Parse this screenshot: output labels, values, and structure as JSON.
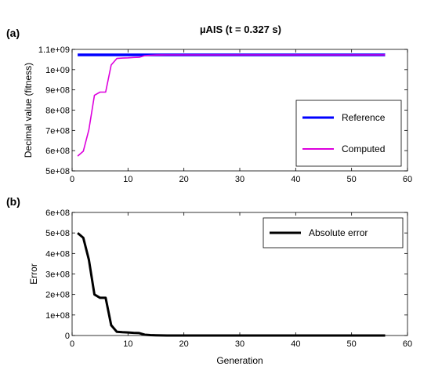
{
  "figure": {
    "title": "µAIS (t = 0.327 s)"
  },
  "chart_data": [
    {
      "id": "a",
      "type": "line",
      "panel_label": "(a)",
      "ylabel": "Decimal value  (fitness)",
      "xlabel": "",
      "xlim": [
        0,
        60
      ],
      "ylim": [
        500000000,
        1100000000
      ],
      "x_ticks": [
        0,
        10,
        20,
        30,
        40,
        50,
        60
      ],
      "y_ticks": [
        500000000,
        600000000,
        700000000,
        800000000,
        900000000,
        1000000000,
        1100000000
      ],
      "y_tick_labels": [
        "5e+08",
        "6e+08",
        "7e+08",
        "8e+08",
        "9e+08",
        "1e+09",
        "1.1e+09"
      ],
      "grid": false,
      "legend_position": "right",
      "series": [
        {
          "name": "Reference",
          "color": "#0000ff",
          "x": [
            1,
            56
          ],
          "y": [
            1073000000,
            1073000000
          ]
        },
        {
          "name": "Computed",
          "color": "#dd00dd",
          "x": [
            1,
            2,
            3,
            4,
            5,
            6,
            7,
            8,
            9,
            10,
            11,
            12,
            13,
            14,
            15,
            16,
            17,
            18,
            20,
            25,
            30,
            40,
            50,
            56
          ],
          "y": [
            573000000,
            597000000,
            703000000,
            873000000,
            889000000,
            889000000,
            1023000000,
            1055000000,
            1057000000,
            1058000000,
            1060000000,
            1061000000,
            1069000000,
            1071000000,
            1072000000,
            1072500000,
            1073000000,
            1073000000,
            1073000000,
            1073000000,
            1073000000,
            1073000000,
            1073000000,
            1073000000
          ]
        }
      ]
    },
    {
      "id": "b",
      "type": "line",
      "panel_label": "(b)",
      "ylabel": "Error",
      "xlabel": "Generation",
      "xlim": [
        0,
        60
      ],
      "ylim": [
        0,
        600000000
      ],
      "x_ticks": [
        0,
        10,
        20,
        30,
        40,
        50,
        60
      ],
      "y_ticks": [
        0,
        100000000,
        200000000,
        300000000,
        400000000,
        500000000,
        600000000
      ],
      "y_tick_labels": [
        "0",
        "1e+08",
        "2e+08",
        "3e+08",
        "4e+08",
        "5e+08",
        "6e+08"
      ],
      "grid": false,
      "legend_position": "top-right",
      "series": [
        {
          "name": "Absolute error",
          "color": "#000000",
          "x": [
            1,
            2,
            3,
            4,
            5,
            6,
            7,
            8,
            9,
            10,
            11,
            12,
            13,
            14,
            15,
            16,
            17,
            18,
            20,
            25,
            30,
            40,
            50,
            56
          ],
          "y": [
            500000000,
            476000000,
            370000000,
            200000000,
            184000000,
            184000000,
            50000000,
            18000000,
            16000000,
            15000000,
            13000000,
            12000000,
            4000000,
            2000000,
            1000000,
            500000,
            0,
            0,
            0,
            0,
            0,
            0,
            0,
            0
          ]
        }
      ]
    }
  ]
}
